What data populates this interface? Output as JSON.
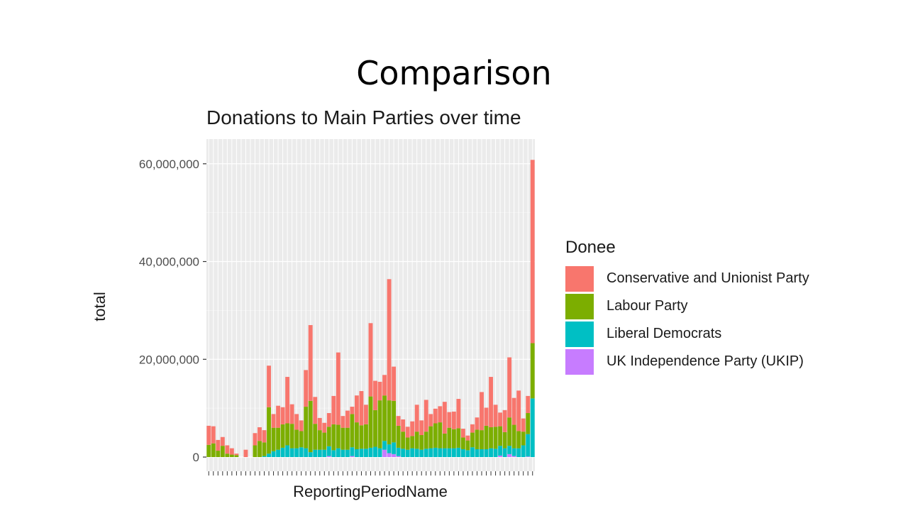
{
  "slide": {
    "title": "Comparison"
  },
  "chart_data": {
    "type": "bar",
    "stacked": true,
    "title": "Donations to Main Parties over time",
    "xlabel": "ReportingPeriodName",
    "ylabel": "total",
    "ylim": [
      0,
      65000000
    ],
    "yticks": [
      0,
      20000000,
      40000000,
      60000000
    ],
    "ytick_labels": [
      "0",
      "20,000,000",
      "40,000,000",
      "60,000,000"
    ],
    "grid": true,
    "legend_position": "right",
    "legend_title": "Donee",
    "series": [
      {
        "name": "Conservative and Unionist Party",
        "color": "#F8766D",
        "values": [
          3900000,
          3500000,
          2200000,
          1800000,
          1700000,
          1300000,
          300000,
          0,
          1500000,
          0,
          2500000,
          2800000,
          2500000,
          8500000,
          2800000,
          4500000,
          3500000,
          9500000,
          4000000,
          3200000,
          2200000,
          7500000,
          15500000,
          5500000,
          2500000,
          2000000,
          2800000,
          5800000,
          14800000,
          2400000,
          3500000,
          1500000,
          5500000,
          7000000,
          4000000,
          15000000,
          6000000,
          3800000,
          4200000,
          24800000,
          7000000,
          2000000,
          2500000,
          2200000,
          3000000,
          5500000,
          3000000,
          6500000,
          2500000,
          3000000,
          3300000,
          6500000,
          3200000,
          3600000,
          6000000,
          1800000,
          1000000,
          1700000,
          2500000,
          7800000,
          3700000,
          10300000,
          4500000,
          2800000,
          4500000,
          12300000,
          5500000,
          8300000,
          2700000,
          3500000,
          37500000
        ]
      },
      {
        "name": "Labour Party",
        "color": "#7CAE00",
        "values": [
          2500000,
          2800000,
          1300000,
          2300000,
          700000,
          500000,
          400000,
          0,
          0,
          0,
          2400000,
          3300000,
          2800000,
          9500000,
          4800000,
          4500000,
          4800000,
          4500000,
          5000000,
          3800000,
          3300000,
          8500000,
          10500000,
          5300000,
          4000000,
          3500000,
          4000000,
          5300000,
          4800000,
          4500000,
          4500000,
          6800000,
          5500000,
          4800000,
          5000000,
          10500000,
          7500000,
          9800000,
          9300000,
          9000000,
          8500000,
          4500000,
          3500000,
          2500000,
          2500000,
          3500000,
          3000000,
          3500000,
          4500000,
          5000000,
          5300000,
          3000000,
          4200000,
          3900000,
          4000000,
          2400000,
          2000000,
          3000000,
          4000000,
          3900000,
          4800000,
          4300000,
          4500000,
          4000000,
          3300000,
          5800000,
          4800000,
          3500000,
          2800000,
          4300000,
          11300000
        ]
      },
      {
        "name": "Liberal Democrats",
        "color": "#00BFC4",
        "values": [
          0,
          0,
          0,
          0,
          0,
          0,
          0,
          0,
          0,
          0,
          0,
          0,
          200000,
          700000,
          1200000,
          1500000,
          1900000,
          2400000,
          1800000,
          1800000,
          2000000,
          1800000,
          1000000,
          1500000,
          1500000,
          1500000,
          2000000,
          1400000,
          1800000,
          1500000,
          1500000,
          1800000,
          1600000,
          1700000,
          1700000,
          1900000,
          2100000,
          1800000,
          1800000,
          1800000,
          2400000,
          1700000,
          1700000,
          1500000,
          1800000,
          1700000,
          1500000,
          1700000,
          1800000,
          1900000,
          1800000,
          1800000,
          1800000,
          1800000,
          1900000,
          1600000,
          1400000,
          2000000,
          1600000,
          1600000,
          1600000,
          1800000,
          1700000,
          2000000,
          1800000,
          1700000,
          1600000,
          1800000,
          2400000,
          4600000,
          12000000
        ]
      },
      {
        "name": "UK Independence Party (UKIP)",
        "color": "#C77CFF",
        "values": [
          0,
          0,
          0,
          0,
          0,
          0,
          0,
          0,
          0,
          0,
          0,
          0,
          0,
          0,
          0,
          0,
          0,
          0,
          0,
          0,
          0,
          0,
          0,
          0,
          0,
          0,
          200000,
          0,
          0,
          0,
          0,
          200000,
          0,
          0,
          0,
          0,
          0,
          0,
          1500000,
          800000,
          600000,
          200000,
          0,
          0,
          0,
          0,
          0,
          0,
          0,
          0,
          0,
          0,
          0,
          0,
          0,
          0,
          0,
          0,
          0,
          0,
          0,
          0,
          0,
          300000,
          0,
          600000,
          200000,
          0,
          0,
          100000,
          0
        ]
      }
    ]
  }
}
